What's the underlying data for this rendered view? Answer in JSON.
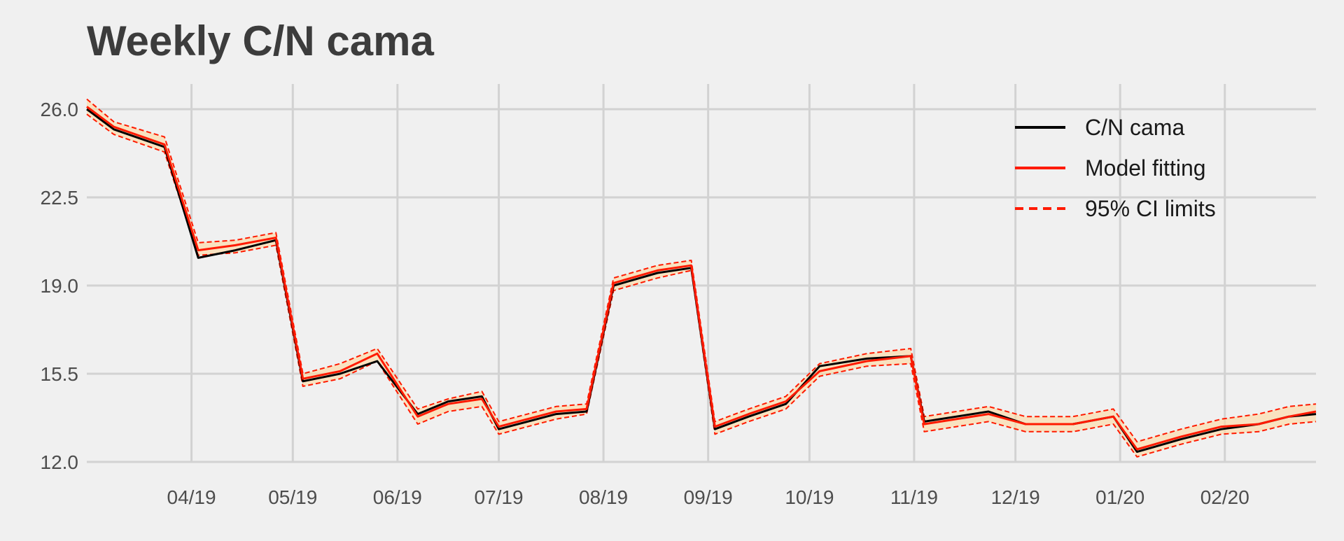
{
  "chart_data": {
    "type": "line",
    "title": "Weekly C/N cama",
    "xlabel": "",
    "ylabel": "",
    "ylim": [
      12.0,
      26.0
    ],
    "yticks": [
      "12.0",
      "15.5",
      "19.0",
      "22.5",
      "26.0"
    ],
    "xlim": [
      "2019-03-01",
      "2020-02-28"
    ],
    "xticks": [
      {
        "date": "2019-04-01",
        "label": "04/19"
      },
      {
        "date": "2019-05-01",
        "label": "05/19"
      },
      {
        "date": "2019-06-01",
        "label": "06/19"
      },
      {
        "date": "2019-07-01",
        "label": "07/19"
      },
      {
        "date": "2019-08-01",
        "label": "08/19"
      },
      {
        "date": "2019-09-01",
        "label": "09/19"
      },
      {
        "date": "2019-10-01",
        "label": "10/19"
      },
      {
        "date": "2019-11-01",
        "label": "11/19"
      },
      {
        "date": "2019-12-01",
        "label": "12/19"
      },
      {
        "date": "2020-01-01",
        "label": "01/20"
      },
      {
        "date": "2020-02-01",
        "label": "02/20"
      }
    ],
    "grid": true,
    "legend_position": "top-right",
    "series": [
      {
        "name": "C/N cama",
        "color": "#000000",
        "style": "solid",
        "x": [
          "2019-03-01",
          "2019-03-09",
          "2019-03-24",
          "2019-04-03",
          "2019-04-14",
          "2019-04-26",
          "2019-05-04",
          "2019-05-15",
          "2019-05-26",
          "2019-06-07",
          "2019-06-16",
          "2019-06-26",
          "2019-07-01",
          "2019-07-18",
          "2019-07-27",
          "2019-08-04",
          "2019-08-17",
          "2019-08-27",
          "2019-09-03",
          "2019-09-13",
          "2019-09-24",
          "2019-10-04",
          "2019-10-18",
          "2019-10-31",
          "2019-11-04",
          "2019-11-23",
          "2019-12-04",
          "2019-12-18",
          "2019-12-30",
          "2020-01-06",
          "2020-01-19",
          "2020-01-31",
          "2020-02-11",
          "2020-02-20",
          "2020-02-28"
        ],
        "values": [
          26.0,
          25.2,
          24.5,
          20.1,
          20.4,
          20.8,
          15.2,
          15.5,
          16.0,
          13.9,
          14.4,
          14.6,
          13.3,
          13.9,
          14.0,
          19.0,
          19.5,
          19.7,
          13.3,
          13.8,
          14.3,
          15.8,
          16.1,
          16.2,
          13.6,
          14.0,
          13.5,
          13.5,
          13.8,
          12.4,
          12.9,
          13.3,
          13.5,
          13.8,
          13.9
        ]
      },
      {
        "name": "Model fitting",
        "color": "#ff1a00",
        "style": "solid",
        "x": [
          "2019-03-01",
          "2019-03-09",
          "2019-03-24",
          "2019-04-03",
          "2019-04-14",
          "2019-04-26",
          "2019-05-04",
          "2019-05-15",
          "2019-05-26",
          "2019-06-07",
          "2019-06-16",
          "2019-06-26",
          "2019-07-01",
          "2019-07-18",
          "2019-07-27",
          "2019-08-04",
          "2019-08-17",
          "2019-08-27",
          "2019-09-03",
          "2019-09-13",
          "2019-09-24",
          "2019-10-04",
          "2019-10-18",
          "2019-10-31",
          "2019-11-04",
          "2019-11-23",
          "2019-12-04",
          "2019-12-18",
          "2019-12-30",
          "2020-01-06",
          "2020-01-19",
          "2020-01-31",
          "2020-02-11",
          "2020-02-20",
          "2020-02-28"
        ],
        "values": [
          26.1,
          25.3,
          24.6,
          20.4,
          20.6,
          20.9,
          15.3,
          15.6,
          16.3,
          13.8,
          14.3,
          14.5,
          13.4,
          14.0,
          14.1,
          19.1,
          19.6,
          19.8,
          13.4,
          13.9,
          14.4,
          15.6,
          16.0,
          16.2,
          13.5,
          13.9,
          13.5,
          13.5,
          13.8,
          12.5,
          13.0,
          13.4,
          13.5,
          13.8,
          14.0
        ]
      },
      {
        "name": "95% CI limits",
        "color": "#ff1a00",
        "style": "dashed",
        "x": [
          "2019-03-01",
          "2019-03-09",
          "2019-03-24",
          "2019-04-03",
          "2019-04-14",
          "2019-04-26",
          "2019-05-04",
          "2019-05-15",
          "2019-05-26",
          "2019-06-07",
          "2019-06-16",
          "2019-06-26",
          "2019-07-01",
          "2019-07-18",
          "2019-07-27",
          "2019-08-04",
          "2019-08-17",
          "2019-08-27",
          "2019-09-03",
          "2019-09-13",
          "2019-09-24",
          "2019-10-04",
          "2019-10-18",
          "2019-10-31",
          "2019-11-04",
          "2019-11-23",
          "2019-12-04",
          "2019-12-18",
          "2019-12-30",
          "2020-01-06",
          "2020-01-19",
          "2020-01-31",
          "2020-02-11",
          "2020-02-20",
          "2020-02-28"
        ],
        "upper": [
          26.4,
          25.5,
          24.9,
          20.7,
          20.8,
          21.1,
          15.5,
          15.9,
          16.5,
          14.1,
          14.5,
          14.8,
          13.6,
          14.2,
          14.3,
          19.3,
          19.8,
          20.0,
          13.6,
          14.1,
          14.6,
          15.9,
          16.3,
          16.5,
          13.8,
          14.2,
          13.8,
          13.8,
          14.1,
          12.8,
          13.3,
          13.7,
          13.9,
          14.2,
          14.3
        ],
        "lower": [
          25.8,
          25.0,
          24.3,
          20.2,
          20.3,
          20.6,
          15.0,
          15.3,
          16.0,
          13.5,
          14.0,
          14.2,
          13.1,
          13.7,
          13.9,
          18.8,
          19.3,
          19.6,
          13.1,
          13.6,
          14.1,
          15.4,
          15.8,
          15.9,
          13.2,
          13.6,
          13.2,
          13.2,
          13.5,
          12.2,
          12.7,
          13.1,
          13.2,
          13.5,
          13.6
        ]
      }
    ]
  }
}
